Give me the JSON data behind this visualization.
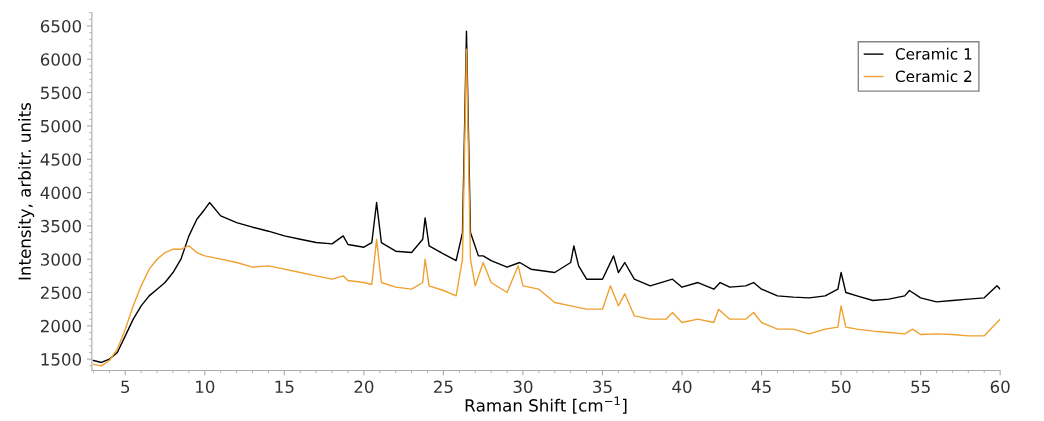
{
  "chart_data": {
    "type": "line",
    "xlabel": "Raman Shift [cm$^{−1}$]",
    "ylabel": "Intensity, arbitr. units",
    "xlim": [
      2.9,
      60
    ],
    "ylim": [
      1330,
      6700
    ],
    "xticks": [
      5,
      10,
      15,
      20,
      25,
      30,
      35,
      40,
      45,
      50,
      55,
      60
    ],
    "yticks": [
      1500,
      2000,
      2500,
      3000,
      3500,
      4000,
      4500,
      5000,
      5500,
      6000,
      6500
    ],
    "grid": false,
    "legend": "top right",
    "marker": "none",
    "line_style": "solid",
    "series": [
      {
        "name": "Ceramic 1",
        "color": "#000000",
        "x": [
          3.0,
          3.5,
          4.0,
          4.5,
          5.0,
          5.5,
          6.0,
          6.5,
          7.0,
          7.5,
          8.0,
          8.5,
          9.0,
          9.5,
          10.0,
          10.3,
          11,
          12,
          13,
          14,
          15,
          16,
          17,
          18,
          18.7,
          19,
          20,
          20.5,
          20.8,
          21.1,
          22,
          23,
          23.7,
          23.85,
          24.1,
          25,
          25.8,
          26.2,
          26.45,
          26.7,
          27.2,
          27.5,
          28,
          29,
          29.8,
          30.5,
          32,
          33.0,
          33.2,
          33.5,
          34,
          35,
          35.7,
          36,
          36.4,
          37,
          38,
          39.4,
          40,
          41,
          42,
          42.4,
          43,
          44,
          44.5,
          45,
          46,
          47,
          48,
          49,
          49.8,
          50.0,
          50.3,
          51,
          52,
          53,
          54,
          54.3,
          55,
          56,
          57,
          58,
          59,
          59.8,
          60
        ],
        "values": [
          1480,
          1450,
          1500,
          1600,
          1850,
          2100,
          2300,
          2450,
          2550,
          2650,
          2800,
          3000,
          3350,
          3600,
          3750,
          3850,
          3650,
          3550,
          3480,
          3420,
          3350,
          3300,
          3250,
          3230,
          3350,
          3220,
          3180,
          3250,
          3850,
          3250,
          3120,
          3100,
          3300,
          3620,
          3200,
          3080,
          2980,
          3400,
          6420,
          3400,
          3050,
          3050,
          2980,
          2880,
          2950,
          2850,
          2800,
          2950,
          3200,
          2900,
          2700,
          2700,
          3050,
          2800,
          2950,
          2700,
          2600,
          2700,
          2580,
          2650,
          2550,
          2650,
          2580,
          2600,
          2650,
          2550,
          2450,
          2430,
          2420,
          2450,
          2550,
          2800,
          2500,
          2450,
          2380,
          2400,
          2450,
          2530,
          2420,
          2360,
          2380,
          2400,
          2420,
          2600,
          2550
        ]
      },
      {
        "name": "Ceramic 2",
        "color": "#f0a030",
        "x": [
          3.0,
          3.5,
          4,
          4.5,
          5,
          5.5,
          6,
          6.5,
          7,
          7.5,
          8,
          8.5,
          9,
          9.5,
          10,
          11,
          12,
          13,
          14,
          15,
          16,
          17,
          18,
          18.7,
          19,
          20,
          20.5,
          20.8,
          21.1,
          22,
          23,
          23.7,
          23.85,
          24.1,
          25,
          25.8,
          26.2,
          26.45,
          26.7,
          27.0,
          27.5,
          28,
          29,
          29.7,
          30,
          31,
          32,
          33,
          34,
          35,
          35.5,
          36,
          36.4,
          37,
          38,
          39,
          39.4,
          40,
          41,
          42,
          42.3,
          43,
          44,
          44.5,
          45,
          46,
          47,
          48,
          49,
          49.8,
          50.0,
          50.3,
          51,
          52,
          53,
          54,
          54.5,
          55,
          56,
          57,
          58,
          59,
          59.8,
          60
        ],
        "values": [
          1420,
          1400,
          1480,
          1650,
          1950,
          2300,
          2600,
          2850,
          3000,
          3100,
          3150,
          3150,
          3200,
          3100,
          3050,
          3000,
          2950,
          2880,
          2900,
          2850,
          2800,
          2750,
          2700,
          2750,
          2680,
          2650,
          2620,
          3300,
          2650,
          2580,
          2550,
          2650,
          3000,
          2600,
          2530,
          2450,
          3000,
          6150,
          3000,
          2600,
          2950,
          2650,
          2500,
          2900,
          2600,
          2550,
          2350,
          2300,
          2250,
          2250,
          2600,
          2300,
          2480,
          2150,
          2100,
          2100,
          2200,
          2050,
          2100,
          2050,
          2250,
          2100,
          2100,
          2200,
          2050,
          1950,
          1950,
          1880,
          1950,
          1980,
          2300,
          1980,
          1950,
          1920,
          1900,
          1880,
          1950,
          1870,
          1880,
          1870,
          1850,
          1850,
          2050,
          2100
        ]
      }
    ]
  }
}
